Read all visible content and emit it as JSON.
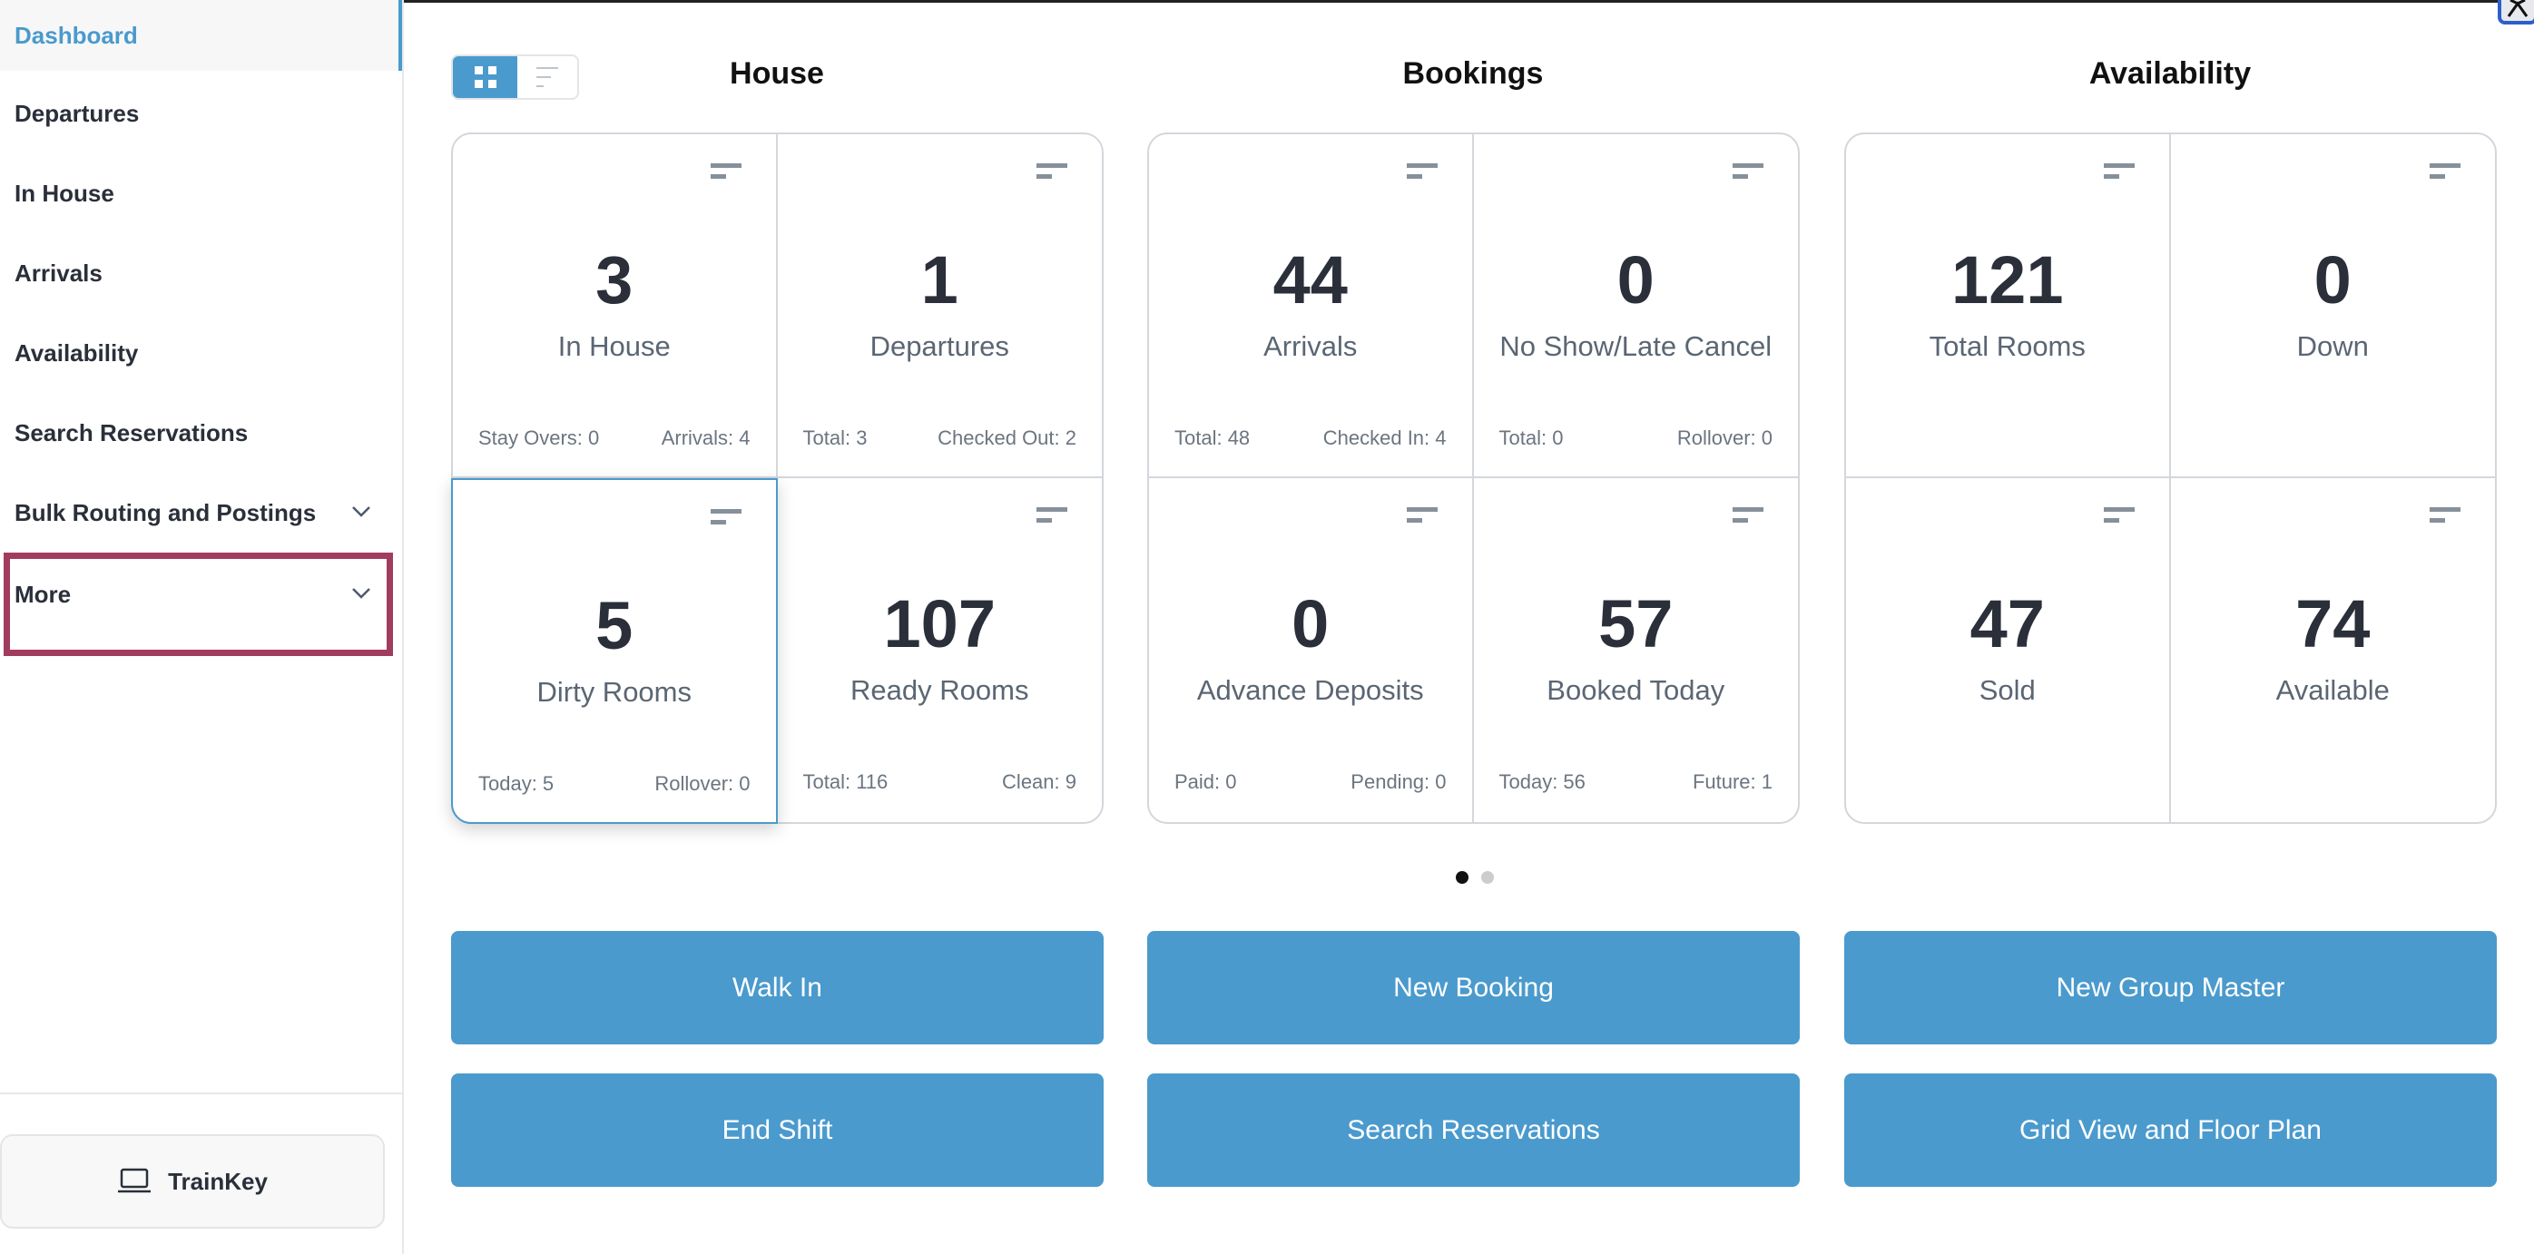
{
  "sidebar": {
    "items": [
      {
        "label": "Dashboard",
        "active": true
      },
      {
        "label": "Departures"
      },
      {
        "label": "In House"
      },
      {
        "label": "Arrivals"
      },
      {
        "label": "Availability"
      },
      {
        "label": "Search Reservations"
      },
      {
        "label": "Bulk Routing and Postings",
        "icon": "chevron-down-icon"
      },
      {
        "label": "More",
        "icon": "chevron-down-icon",
        "highlighted": true
      }
    ],
    "trainkey": {
      "label": "TrainKey",
      "icon": "laptop-icon"
    }
  },
  "view_toggle": {
    "options": [
      "grid-icon",
      "list-icon"
    ],
    "selected": "grid-icon"
  },
  "sections": [
    {
      "title": "House",
      "cells": [
        {
          "value": "3",
          "label": "In House",
          "left": "Stay Overs: 0",
          "right": "Arrivals: 4"
        },
        {
          "value": "1",
          "label": "Departures",
          "left": "Total: 3",
          "right": "Checked Out: 2"
        },
        {
          "value": "5",
          "label": "Dirty Rooms",
          "left": "Today: 5",
          "right": "Rollover: 0",
          "focused": true
        },
        {
          "value": "107",
          "label": "Ready Rooms",
          "left": "Total: 116",
          "right": "Clean: 9"
        }
      ]
    },
    {
      "title": "Bookings",
      "cells": [
        {
          "value": "44",
          "label": "Arrivals",
          "left": "Total: 48",
          "right": "Checked In: 4"
        },
        {
          "value": "0",
          "label": "No Show/Late Cancel",
          "left": "Total: 0",
          "right": "Rollover: 0"
        },
        {
          "value": "0",
          "label": "Advance Deposits",
          "left": "Paid: 0",
          "right": "Pending: 0"
        },
        {
          "value": "57",
          "label": "Booked Today",
          "left": "Today: 56",
          "right": "Future: 1"
        }
      ]
    },
    {
      "title": "Availability",
      "cells": [
        {
          "value": "121",
          "label": "Total Rooms",
          "left": "",
          "right": ""
        },
        {
          "value": "0",
          "label": "Down",
          "left": "",
          "right": ""
        },
        {
          "value": "47",
          "label": "Sold",
          "left": "",
          "right": ""
        },
        {
          "value": "74",
          "label": "Available",
          "left": "",
          "right": ""
        }
      ]
    }
  ],
  "pager": {
    "pages": 2,
    "current": 1
  },
  "actions": [
    "Walk In",
    "New Booking",
    "New Group Master",
    "End Shift",
    "Search Reservations",
    "Grid View and Floor Plan"
  ],
  "colors": {
    "accent": "#4a9acd",
    "highlight_border": "#a23c5f",
    "text": "#2a2f3a"
  }
}
